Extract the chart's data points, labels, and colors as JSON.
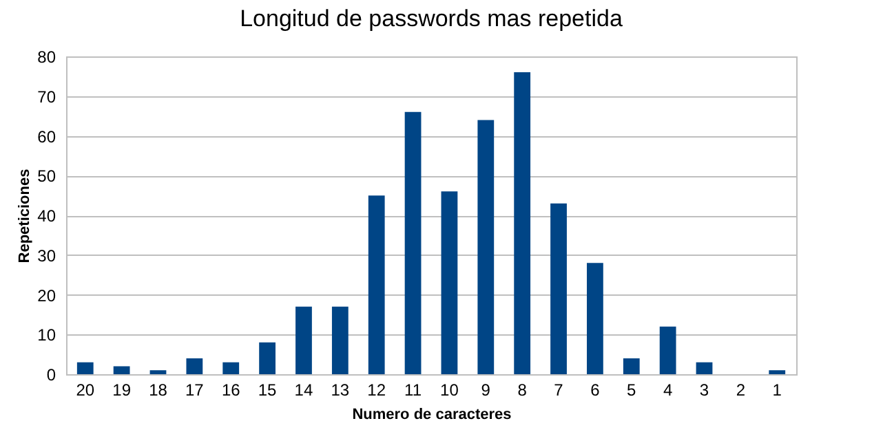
{
  "chart_data": {
    "type": "bar",
    "title": "Longitud de passwords mas repetida",
    "xlabel": "Numero de caracteres",
    "ylabel": "Repeticiones",
    "categories": [
      "20",
      "19",
      "18",
      "17",
      "16",
      "15",
      "14",
      "13",
      "12",
      "11",
      "10",
      "9",
      "8",
      "7",
      "6",
      "5",
      "4",
      "3",
      "2",
      "1"
    ],
    "series": [
      {
        "color": "#004586",
        "values": [
          3,
          2,
          1,
          4,
          3,
          8,
          17,
          17,
          45,
          66,
          46,
          64,
          76,
          43,
          28,
          4,
          12,
          3,
          0,
          1
        ]
      }
    ],
    "ylim": [
      0,
      80
    ],
    "yticks": [
      0,
      10,
      20,
      30,
      40,
      50,
      60,
      70,
      80
    ],
    "grid": "y",
    "legend": false
  }
}
